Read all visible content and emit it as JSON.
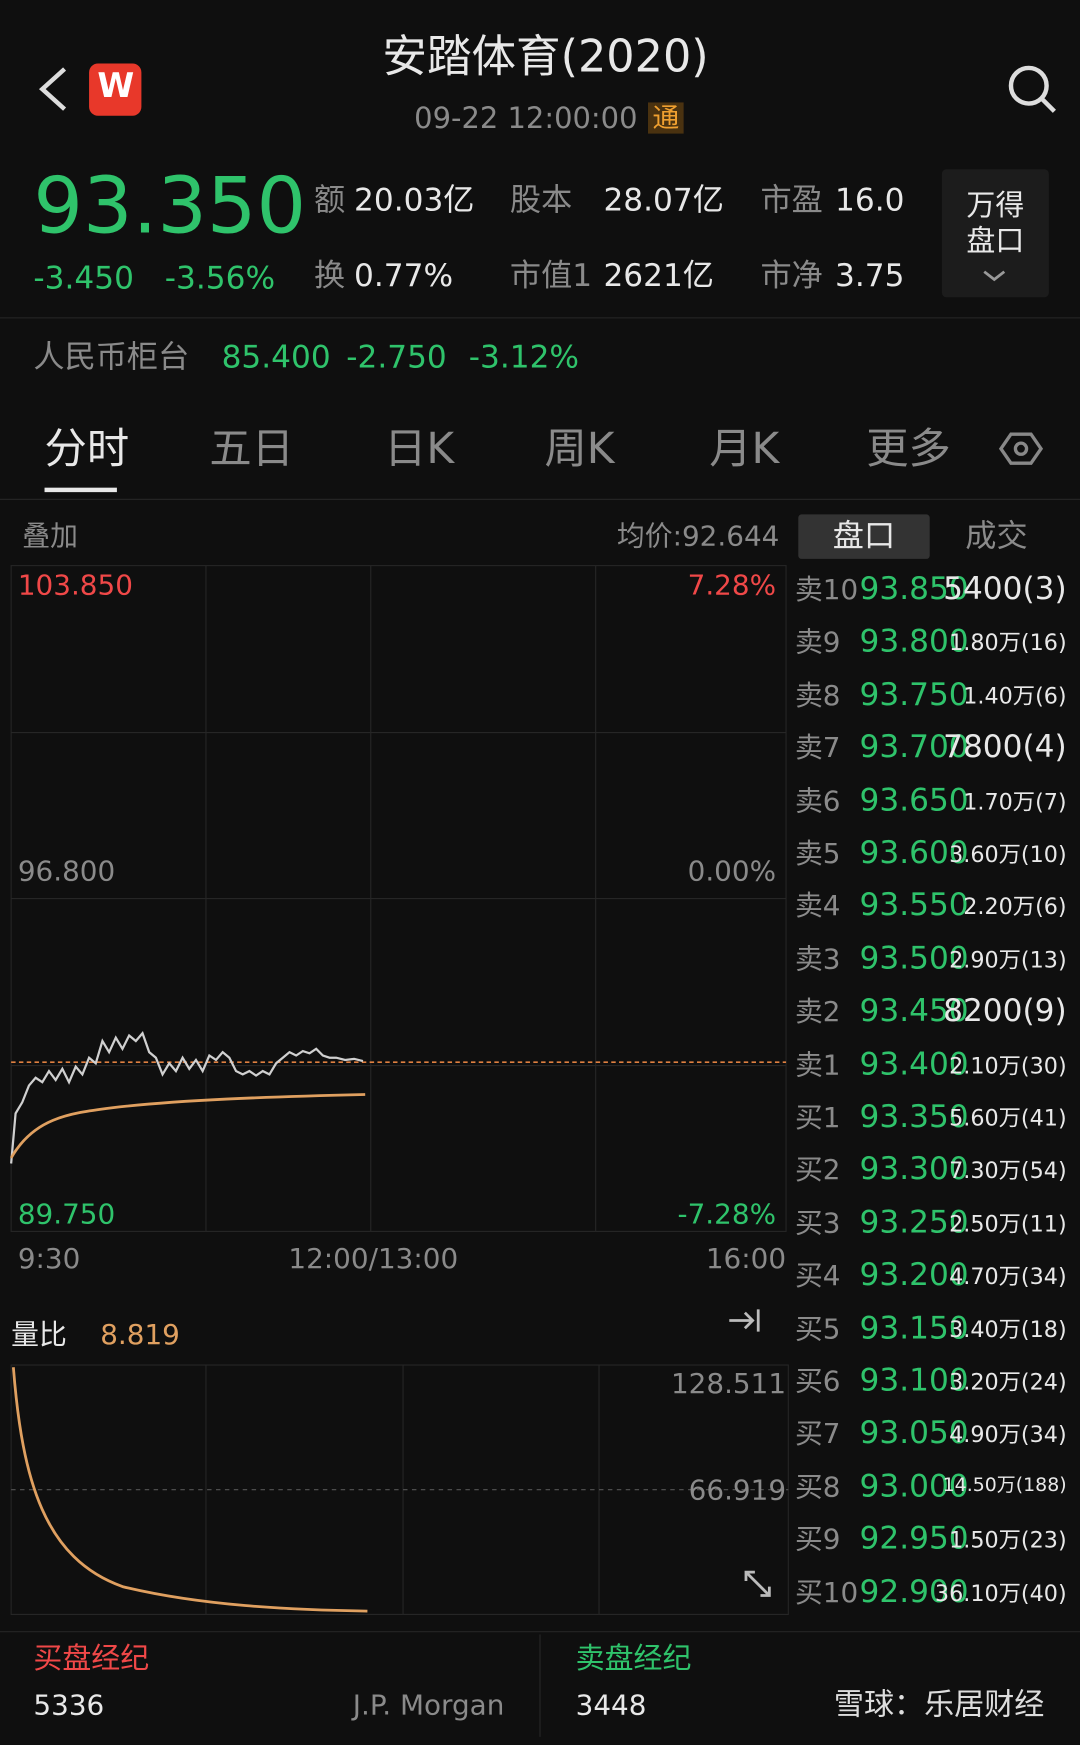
{
  "header": {
    "logo": "W",
    "title": "安踏体育(2020)",
    "datetime": "09-22 12:00:00",
    "badge": "通"
  },
  "quote": {
    "price": "93.350",
    "change": "-3.450",
    "change_pct": "-3.56%",
    "stats": [
      {
        "label": "额",
        "value": "20.03亿"
      },
      {
        "label": "股本",
        "value": "28.07亿"
      },
      {
        "label": "市盈",
        "value": "16.0"
      },
      {
        "label": "换",
        "value": "0.77%"
      },
      {
        "label": "市值1",
        "value": "2621亿"
      },
      {
        "label": "市净",
        "value": "3.75"
      }
    ],
    "button": [
      "万得",
      "盘口"
    ]
  },
  "rmb": {
    "label": "人民币柜台",
    "price": "85.400",
    "change": "-2.750",
    "change_pct": "-3.12%"
  },
  "tabs": [
    "分时",
    "五日",
    "日K",
    "周K",
    "月K",
    "更多"
  ],
  "chart": {
    "overlay": "叠加",
    "average": "均价:92.644",
    "high": "103.850",
    "mid": "96.800",
    "low": "89.750",
    "high_pct": "7.28%",
    "mid_pct": "0.00%",
    "low_pct": "-7.28%",
    "x_labels": [
      "9:30",
      "12:00/13:00",
      "16:00"
    ]
  },
  "volume": {
    "label": "量比",
    "value": "8.819",
    "ticks": [
      "128.511",
      "66.919"
    ]
  },
  "orderbook": {
    "tabs": [
      "盘口",
      "成交"
    ],
    "rows": [
      [
        "卖10",
        "93.850",
        "5400(3)"
      ],
      [
        "卖9",
        "93.800",
        "1.80万(16)"
      ],
      [
        "卖8",
        "93.750",
        "1.40万(6)"
      ],
      [
        "卖7",
        "93.700",
        "7800(4)"
      ],
      [
        "卖6",
        "93.650",
        "1.70万(7)"
      ],
      [
        "卖5",
        "93.600",
        "3.60万(10)"
      ],
      [
        "卖4",
        "93.550",
        "2.20万(6)"
      ],
      [
        "卖3",
        "93.500",
        "2.90万(13)"
      ],
      [
        "卖2",
        "93.450",
        "8200(9)"
      ],
      [
        "卖1",
        "93.400",
        "2.10万(30)"
      ],
      [
        "买1",
        "93.350",
        "5.60万(41)"
      ],
      [
        "买2",
        "93.300",
        "7.30万(54)"
      ],
      [
        "买3",
        "93.250",
        "2.50万(11)"
      ],
      [
        "买4",
        "93.200",
        "4.70万(34)"
      ],
      [
        "买5",
        "93.150",
        "3.40万(18)"
      ],
      [
        "买6",
        "93.100",
        "3.20万(24)"
      ],
      [
        "买7",
        "93.050",
        "4.90万(34)"
      ],
      [
        "买8",
        "93.000",
        "14.50万(188)"
      ],
      [
        "买9",
        "92.950",
        "1.50万(23)"
      ],
      [
        "买10",
        "92.900",
        "36.10万(40)"
      ]
    ]
  },
  "footer": {
    "buy_label": "买盘经纪",
    "buy_count": "5336",
    "buy_broker": "J.P. Morgan",
    "sell_label": "卖盘经纪",
    "sell_count": "3448",
    "watermark": "雪球：乐居财经"
  }
}
